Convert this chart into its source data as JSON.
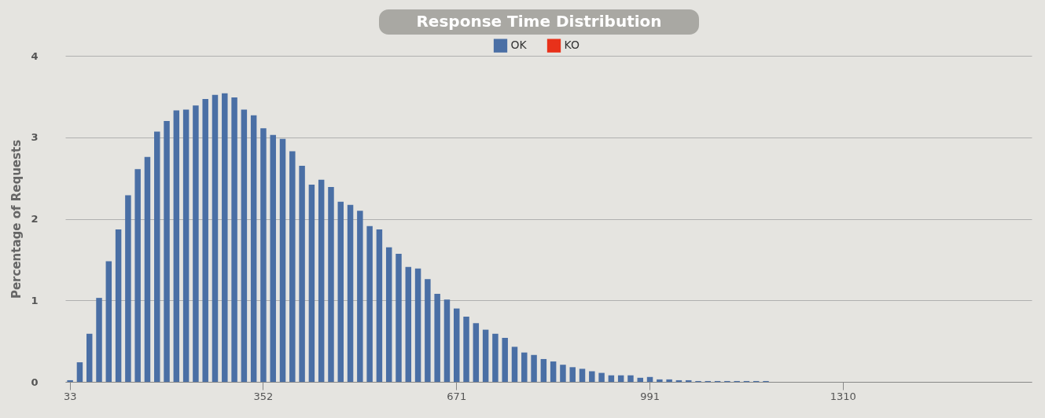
{
  "chart_data": {
    "type": "bar",
    "title": "Response Time Distribution",
    "ylabel": "Percentage of Requests",
    "categories": [
      "33",
      null,
      null,
      null,
      null,
      null,
      null,
      null,
      null,
      null,
      null,
      null,
      null,
      null,
      null,
      null,
      null,
      null,
      null,
      null,
      "352",
      null,
      null,
      null,
      null,
      null,
      null,
      null,
      null,
      null,
      null,
      null,
      null,
      null,
      null,
      null,
      null,
      null,
      null,
      null,
      "671",
      null,
      null,
      null,
      null,
      null,
      null,
      null,
      null,
      null,
      null,
      null,
      null,
      null,
      null,
      null,
      null,
      null,
      null,
      null,
      "991",
      null,
      null,
      null,
      null,
      null,
      null,
      null,
      null,
      null,
      null,
      null,
      null,
      null,
      null,
      null,
      null,
      null,
      null,
      null,
      "1310",
      null,
      null,
      null,
      null,
      null,
      null,
      null,
      null,
      null,
      null,
      null,
      null,
      null,
      null,
      null,
      null,
      null,
      null,
      null
    ],
    "series": [
      {
        "name": "OK",
        "color": "#4a6fa5",
        "values": [
          0.02,
          0.24,
          0.59,
          1.03,
          1.48,
          1.87,
          2.29,
          2.61,
          2.76,
          3.07,
          3.2,
          3.33,
          3.34,
          3.39,
          3.47,
          3.52,
          3.54,
          3.49,
          3.34,
          3.27,
          3.11,
          3.03,
          2.98,
          2.83,
          2.65,
          2.42,
          2.48,
          2.39,
          2.21,
          2.17,
          2.1,
          1.91,
          1.87,
          1.65,
          1.57,
          1.41,
          1.39,
          1.26,
          1.08,
          1.01,
          0.9,
          0.8,
          0.72,
          0.64,
          0.59,
          0.54,
          0.43,
          0.36,
          0.33,
          0.28,
          0.25,
          0.21,
          0.18,
          0.16,
          0.13,
          0.11,
          0.08,
          0.08,
          0.08,
          0.05,
          0.06,
          0.03,
          0.03,
          0.02,
          0.02,
          0.01,
          0.01,
          0.01,
          0.01,
          0.01,
          0.01,
          0.01,
          0.01,
          0,
          0,
          0,
          0,
          0,
          0,
          0,
          0,
          0,
          0,
          0,
          0,
          0,
          0,
          0,
          0,
          0,
          0,
          0,
          0,
          0,
          0,
          0,
          0,
          0,
          0,
          0
        ]
      },
      {
        "name": "KO",
        "color": "#e8311a",
        "values": [
          null,
          null,
          null,
          null,
          null,
          null,
          null,
          null,
          null,
          null,
          null,
          null,
          null,
          null,
          null,
          null,
          null,
          null,
          null,
          null,
          null,
          null,
          null,
          null,
          null,
          null,
          null,
          null,
          null,
          null,
          null,
          null,
          null,
          null,
          null,
          null,
          null,
          null,
          null,
          null,
          null,
          null,
          null,
          null,
          null,
          null,
          null,
          null,
          null,
          null,
          null,
          null,
          null,
          null,
          null,
          null,
          null,
          null,
          null,
          null,
          null,
          null,
          null,
          null,
          null,
          null,
          null,
          null,
          null,
          null,
          null,
          null,
          null,
          null,
          null,
          null,
          null,
          null,
          null,
          null,
          null,
          null,
          null,
          null,
          null,
          null,
          null,
          null,
          null,
          null,
          null,
          null,
          null,
          null,
          null,
          null,
          null,
          null,
          null,
          null
        ]
      }
    ],
    "ylim": [
      0,
      4
    ],
    "yticks": [
      0,
      1,
      2,
      3,
      4
    ],
    "grid": "y",
    "legend": "top"
  }
}
